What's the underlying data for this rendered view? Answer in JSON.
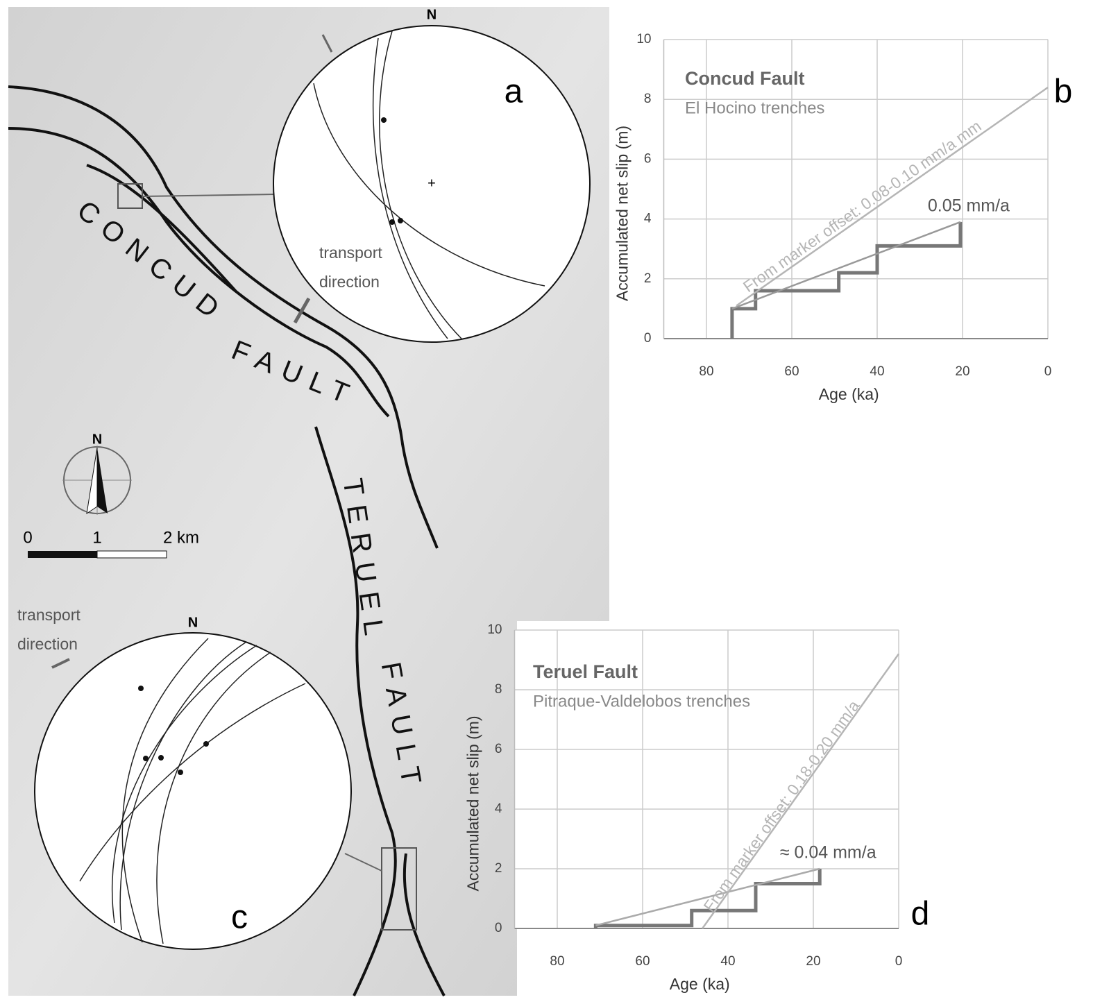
{
  "chart_data": [
    {
      "type": "line",
      "panel_label": "b",
      "title": "Concud Fault",
      "subtitle": "El Hocino trenches",
      "x_label": "Age (ka)",
      "y_label": "Accumulated net slip  (m)",
      "xlim": [
        90,
        0
      ],
      "ylim": [
        0,
        10
      ],
      "xticks": [
        80,
        60,
        40,
        20,
        0
      ],
      "yticks": [
        0,
        2,
        4,
        6,
        8,
        10
      ],
      "grid": true,
      "series": [
        {
          "color": "#777777",
          "x": [
            74,
            74,
            68.5,
            68.5,
            49,
            49,
            40,
            40,
            20.5,
            20.5
          ],
          "values": [
            0,
            1,
            1,
            1.6,
            1.6,
            2.2,
            2.2,
            3.1,
            3.1,
            3.9
          ]
        },
        {
          "name": "0.05 mm/a",
          "color": "#999999",
          "x": [
            74,
            20.5
          ],
          "values": [
            1,
            3.9
          ]
        },
        {
          "name": "From marker offset: 0.08-0.10 mm/a mm",
          "color": "#b5b5b5",
          "x": [
            73,
            0
          ],
          "values": [
            1.1,
            8.4
          ]
        }
      ]
    },
    {
      "type": "line",
      "panel_label": "d",
      "title": "Teruel Fault",
      "subtitle": "Pitraque-Valdelobos trenches",
      "x_label": "Age (ka)",
      "y_label": "Accumulated net slip  (m)",
      "xlim": [
        90,
        0
      ],
      "ylim": [
        0,
        10
      ],
      "xticks": [
        80,
        60,
        40,
        20,
        0
      ],
      "yticks": [
        0,
        2,
        4,
        6,
        8,
        10
      ],
      "grid": true,
      "series": [
        {
          "color": "#777777",
          "x": [
            71,
            71,
            48.5,
            48.5,
            33.5,
            33.5,
            18.5,
            18.5
          ],
          "values": [
            0,
            0.1,
            0.1,
            0.6,
            0.6,
            1.5,
            1.5,
            2.0
          ]
        },
        {
          "name": "≈ 0.04 mm/a",
          "color": "#aaaaaa",
          "x": [
            71,
            18.5
          ],
          "values": [
            0.1,
            2.0
          ]
        },
        {
          "name": "From marker offset: 0.18-0.20 mm/a",
          "color": "#b5b5b5",
          "x": [
            46,
            0
          ],
          "values": [
            0,
            9.2
          ]
        }
      ]
    }
  ],
  "map": {
    "fault_labels": [
      "CONCUD",
      "FAULT",
      "TERUEL",
      "FAULT"
    ],
    "compass_label": "N",
    "scale_labels": [
      "0",
      "1",
      "2 km"
    ],
    "stereonets": [
      {
        "panel_label": "a",
        "north": "N",
        "note": [
          "transport",
          "direction"
        ]
      },
      {
        "panel_label": "c",
        "north": "N",
        "note": [
          "transport",
          "direction"
        ]
      }
    ]
  }
}
